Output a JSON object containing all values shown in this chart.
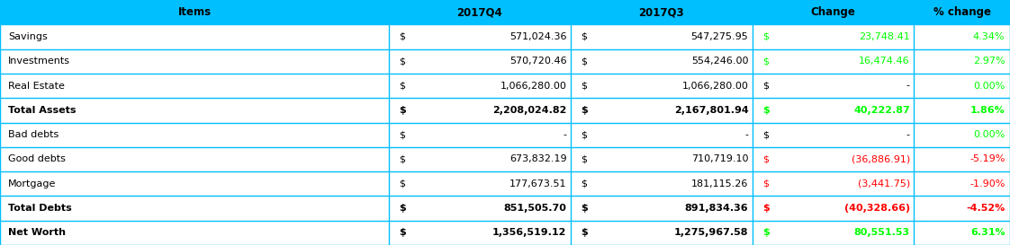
{
  "header": [
    "Items",
    "2017Q4",
    "2017Q3",
    "Change",
    "% change"
  ],
  "rows": [
    {
      "item": "Savings",
      "bold": false,
      "q4_dollar": "$",
      "q4_val": "571,024.36",
      "q3_dollar": "$",
      "q3_val": "547,275.95",
      "ch_dollar": "$",
      "ch_val": "23,748.41",
      "pct": "4.34%",
      "ch_color": "lime",
      "pct_color": "lime"
    },
    {
      "item": "Investments",
      "bold": false,
      "q4_dollar": "$",
      "q4_val": "570,720.46",
      "q3_dollar": "$",
      "q3_val": "554,246.00",
      "ch_dollar": "$",
      "ch_val": "16,474.46",
      "pct": "2.97%",
      "ch_color": "lime",
      "pct_color": "lime"
    },
    {
      "item": "Real Estate",
      "bold": false,
      "q4_dollar": "$",
      "q4_val": "1,066,280.00",
      "q3_dollar": "$",
      "q3_val": "1,066,280.00",
      "ch_dollar": "$",
      "ch_val": "-",
      "pct": "0.00%",
      "ch_color": "black",
      "pct_color": "lime"
    },
    {
      "item": "Total Assets",
      "bold": true,
      "q4_dollar": "$",
      "q4_val": "2,208,024.82",
      "q3_dollar": "$",
      "q3_val": "2,167,801.94",
      "ch_dollar": "$",
      "ch_val": "40,222.87",
      "pct": "1.86%",
      "ch_color": "lime",
      "pct_color": "lime"
    },
    {
      "item": "Bad debts",
      "bold": false,
      "q4_dollar": "$",
      "q4_val": "-",
      "q3_dollar": "$",
      "q3_val": "-",
      "ch_dollar": "$",
      "ch_val": "-",
      "pct": "0.00%",
      "ch_color": "black",
      "pct_color": "lime"
    },
    {
      "item": "Good debts",
      "bold": false,
      "q4_dollar": "$",
      "q4_val": "673,832.19",
      "q3_dollar": "$",
      "q3_val": "710,719.10",
      "ch_dollar": "$",
      "ch_val": "(36,886.91)",
      "pct": "-5.19%",
      "ch_color": "red",
      "pct_color": "red"
    },
    {
      "item": "Mortgage",
      "bold": false,
      "q4_dollar": "$",
      "q4_val": "177,673.51",
      "q3_dollar": "$",
      "q3_val": "181,115.26",
      "ch_dollar": "$",
      "ch_val": "(3,441.75)",
      "pct": "-1.90%",
      "ch_color": "red",
      "pct_color": "red"
    },
    {
      "item": "Total Debts",
      "bold": true,
      "q4_dollar": "$",
      "q4_val": "851,505.70",
      "q3_dollar": "$",
      "q3_val": "891,834.36",
      "ch_dollar": "$",
      "ch_val": "(40,328.66)",
      "pct": "-4.52%",
      "ch_color": "red",
      "pct_color": "red"
    },
    {
      "item": "Net Worth",
      "bold": true,
      "q4_dollar": "$",
      "q4_val": "1,356,519.12",
      "q3_dollar": "$",
      "q3_val": "1,275,967.58",
      "ch_dollar": "$",
      "ch_val": "80,551.53",
      "pct": "6.31%",
      "ch_color": "lime",
      "pct_color": "lime"
    }
  ],
  "header_bg": "#00BFFF",
  "border_color": "#00BFFF",
  "figsize": [
    11.22,
    2.73
  ],
  "dpi": 100
}
